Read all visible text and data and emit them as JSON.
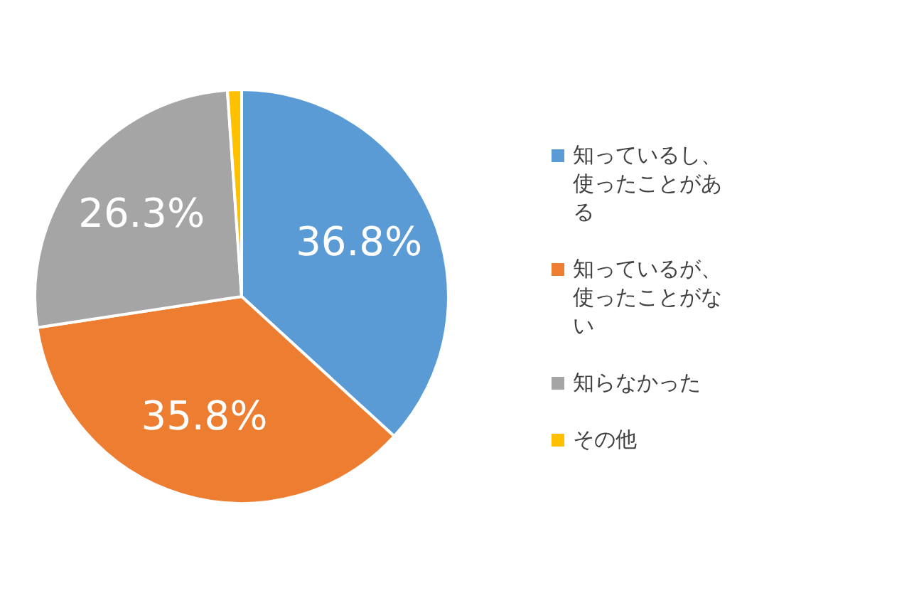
{
  "chart_data": {
    "type": "pie",
    "categories": [
      "知っているし、使ったことがある",
      "知っているが、使ったことがない",
      "知らなかった",
      "その他"
    ],
    "values": [
      36.8,
      35.8,
      26.3,
      1.1
    ],
    "colors": [
      "#5b9bd5",
      "#ed7d31",
      "#a5a5a5",
      "#ffc000"
    ],
    "value_labels": [
      "36.8%",
      "35.8%",
      "26.3%",
      null
    ],
    "legend": "right"
  }
}
